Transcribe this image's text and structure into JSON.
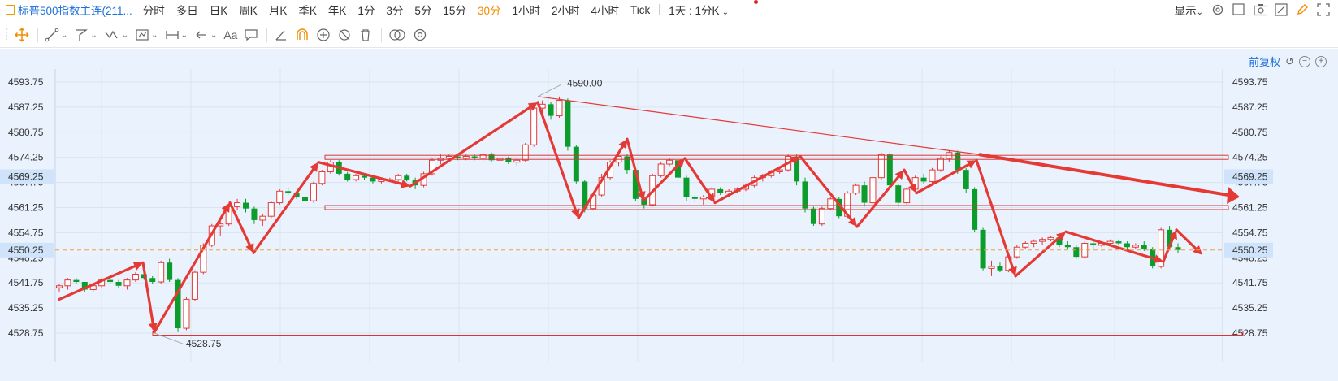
{
  "toolbar": {
    "title": "标普500指数主连(211...",
    "periods": [
      "分时",
      "多日",
      "日K",
      "周K",
      "月K",
      "季K",
      "年K",
      "1分",
      "3分",
      "5分",
      "15分",
      "30分",
      "1小时",
      "2小时",
      "4小时",
      "Tick"
    ],
    "active_period": "30分",
    "range_selector": "1天 : 1分K",
    "display_label": "显示"
  },
  "toolbar2": {
    "text_tool": "Aa"
  },
  "adjust": {
    "label": "前复权"
  },
  "price_axis": {
    "ticks": [
      "4593.75",
      "4587.25",
      "4580.75",
      "4574.25",
      "4567.75",
      "4561.25",
      "4554.75",
      "4548.25",
      "4541.75",
      "4535.25",
      "4528.75"
    ],
    "current_label": "4569.25",
    "last_label": "4550.25"
  },
  "annotations": {
    "high": "4590.00",
    "low": "4528.75"
  },
  "colors": {
    "up": "#e03a3a",
    "down": "#0b9c2c",
    "last_price": "#f0a040",
    "arrow": "#e53935"
  },
  "chart_data": {
    "type": "candlestick",
    "y_range": [
      4524,
      4600
    ],
    "candles": [
      [
        4540.5,
        4541.5,
        4539.5,
        4541
      ],
      [
        4541,
        4543,
        4540,
        4542.5
      ],
      [
        4542.5,
        4543,
        4541.5,
        4542
      ],
      [
        4542,
        4542,
        4539.5,
        4540
      ],
      [
        4540,
        4541.5,
        4539.5,
        4541
      ],
      [
        4541,
        4543,
        4540.5,
        4542.5
      ],
      [
        4542.5,
        4543,
        4541.5,
        4542
      ],
      [
        4542,
        4542.5,
        4540.5,
        4541
      ],
      [
        4541,
        4543,
        4540,
        4542.5
      ],
      [
        4542.5,
        4544.5,
        4542,
        4544
      ],
      [
        4544,
        4544.5,
        4542.5,
        4543
      ],
      [
        4543,
        4543.5,
        4541.5,
        4542
      ],
      [
        4542,
        4547.5,
        4541.5,
        4547
      ],
      [
        4547,
        4548,
        4542,
        4542.5
      ],
      [
        4542.5,
        4543,
        4529,
        4530
      ],
      [
        4530,
        4538,
        4529.5,
        4537.5
      ],
      [
        4537.5,
        4545,
        4537,
        4544.5
      ],
      [
        4544.5,
        4552,
        4544,
        4551.5
      ],
      [
        4551.5,
        4557,
        4551,
        4556.5
      ],
      [
        4556.5,
        4558,
        4554,
        4557
      ],
      [
        4557,
        4562,
        4556.5,
        4561.5
      ],
      [
        4561.5,
        4563.5,
        4560.5,
        4562.5
      ],
      [
        4562.5,
        4563.5,
        4560,
        4561
      ],
      [
        4561,
        4561.5,
        4557,
        4558
      ],
      [
        4558,
        4559.5,
        4556.5,
        4559
      ],
      [
        4559,
        4563,
        4558.5,
        4562.5
      ],
      [
        4562.5,
        4566,
        4562,
        4565.5
      ],
      [
        4565.5,
        4566.5,
        4564.5,
        4565
      ],
      [
        4565,
        4565.5,
        4563.5,
        4564
      ],
      [
        4564,
        4565,
        4562.5,
        4563
      ],
      [
        4563,
        4568,
        4562.5,
        4567.5
      ],
      [
        4567.5,
        4571,
        4567,
        4570.5
      ],
      [
        4570.5,
        4573.5,
        4570,
        4573
      ],
      [
        4573,
        4573.5,
        4569.5,
        4570
      ],
      [
        4570,
        4570.5,
        4568,
        4568.5
      ],
      [
        4568.5,
        4570,
        4568,
        4569.5
      ],
      [
        4569.5,
        4570,
        4568.5,
        4569
      ],
      [
        4569,
        4569.5,
        4567.5,
        4568
      ],
      [
        4568,
        4569,
        4567.5,
        4568.5
      ],
      [
        4568.5,
        4569,
        4568,
        4568.5
      ],
      [
        4568.5,
        4570,
        4568,
        4569.5
      ],
      [
        4569.5,
        4570,
        4568,
        4568.5
      ],
      [
        4568.5,
        4569,
        4566,
        4567
      ],
      [
        4567,
        4570.5,
        4566.5,
        4570
      ],
      [
        4570,
        4574,
        4569.5,
        4573.5
      ],
      [
        4573.5,
        4575,
        4572.5,
        4574
      ],
      [
        4574,
        4575,
        4573,
        4574.5
      ],
      [
        4574.5,
        4575,
        4573.5,
        4574
      ],
      [
        4574,
        4575,
        4573.5,
        4574.5
      ],
      [
        4574.5,
        4575,
        4573.5,
        4574
      ],
      [
        4574,
        4575.5,
        4573,
        4575
      ],
      [
        4575,
        4575.5,
        4573,
        4573.5
      ],
      [
        4573.5,
        4574.5,
        4573,
        4574
      ],
      [
        4574,
        4574.5,
        4572.5,
        4573
      ],
      [
        4573,
        4574,
        4572,
        4573.5
      ],
      [
        4573.5,
        4578,
        4573,
        4577.5
      ],
      [
        4577.5,
        4587.5,
        4577,
        4587
      ],
      [
        4587,
        4589,
        4584,
        4588
      ],
      [
        4588,
        4588.5,
        4584,
        4585
      ],
      [
        4585,
        4590,
        4584.5,
        4589
      ],
      [
        4589,
        4589.5,
        4576,
        4577
      ],
      [
        4577,
        4577.5,
        4567.5,
        4568
      ],
      [
        4568,
        4568.5,
        4560,
        4561
      ],
      [
        4561,
        4565,
        4560.5,
        4564.5
      ],
      [
        4564.5,
        4570,
        4564,
        4569
      ],
      [
        4569,
        4573.5,
        4568.5,
        4573
      ],
      [
        4573,
        4575,
        4572,
        4574.5
      ],
      [
        4574.5,
        4575,
        4570,
        4571
      ],
      [
        4571,
        4571.5,
        4563,
        4563.5
      ],
      [
        4563.5,
        4564,
        4561,
        4562
      ],
      [
        4562,
        4570,
        4561.5,
        4569.5
      ],
      [
        4569.5,
        4573,
        4569,
        4572.5
      ],
      [
        4572.5,
        4574,
        4572,
        4573.5
      ],
      [
        4573.5,
        4574,
        4568,
        4569
      ],
      [
        4569,
        4569.5,
        4563,
        4564
      ],
      [
        4564,
        4564.5,
        4562.5,
        4563.5
      ],
      [
        4563.5,
        4564.5,
        4562,
        4564
      ],
      [
        4564,
        4566.5,
        4563.5,
        4566
      ],
      [
        4566,
        4566.5,
        4564.5,
        4565
      ],
      [
        4565,
        4566,
        4564,
        4565.5
      ],
      [
        4565.5,
        4566.5,
        4565,
        4566
      ],
      [
        4566,
        4567.5,
        4565.5,
        4567
      ],
      [
        4567,
        4569.5,
        4566.5,
        4569
      ],
      [
        4569,
        4570,
        4568,
        4569.5
      ],
      [
        4569.5,
        4571,
        4569,
        4570.5
      ],
      [
        4570.5,
        4571.5,
        4570,
        4571
      ],
      [
        4571,
        4575,
        4570.5,
        4574.5
      ],
      [
        4574.5,
        4575,
        4567,
        4568
      ],
      [
        4568,
        4569,
        4560,
        4561
      ],
      [
        4561,
        4561.5,
        4556.5,
        4557
      ],
      [
        4557,
        4561.5,
        4556.5,
        4561
      ],
      [
        4561,
        4564,
        4560.5,
        4563.5
      ],
      [
        4563.5,
        4564,
        4558.5,
        4559
      ],
      [
        4559,
        4565.5,
        4558.5,
        4565
      ],
      [
        4565,
        4567.5,
        4564.5,
        4567
      ],
      [
        4567,
        4568,
        4561.5,
        4562.5
      ],
      [
        4562.5,
        4569.5,
        4562,
        4569
      ],
      [
        4569,
        4575.5,
        4568.5,
        4575
      ],
      [
        4575,
        4575.5,
        4566,
        4567
      ],
      [
        4567,
        4567.5,
        4561.5,
        4562.5
      ],
      [
        4562.5,
        4566.5,
        4562,
        4566
      ],
      [
        4566,
        4569.5,
        4565.5,
        4569
      ],
      [
        4569,
        4570,
        4567.5,
        4568
      ],
      [
        4568,
        4571.5,
        4567.5,
        4571
      ],
      [
        4571,
        4574.5,
        4570.5,
        4574
      ],
      [
        4574,
        4576,
        4573,
        4575.5
      ],
      [
        4575.5,
        4576,
        4570,
        4571
      ],
      [
        4571,
        4571.5,
        4565,
        4566
      ],
      [
        4566,
        4566.5,
        4555,
        4555.5
      ],
      [
        4555.5,
        4556,
        4545,
        4545.5
      ],
      [
        4545.5,
        4547.5,
        4543.5,
        4546
      ],
      [
        4546,
        4547,
        4544.5,
        4545
      ],
      [
        4545,
        4549,
        4544.5,
        4548.5
      ],
      [
        4548.5,
        4551.5,
        4548,
        4551
      ],
      [
        4551,
        4552.5,
        4550.5,
        4552
      ],
      [
        4552,
        4553,
        4551,
        4552.5
      ],
      [
        4552.5,
        4553.5,
        4551.5,
        4553
      ],
      [
        4553,
        4554,
        4552.5,
        4553.5
      ],
      [
        4553.5,
        4554,
        4551,
        4551.5
      ],
      [
        4551.5,
        4552.5,
        4550.5,
        4551
      ],
      [
        4551,
        4551.5,
        4548,
        4548.5
      ],
      [
        4548.5,
        4552.5,
        4548,
        4552
      ],
      [
        4552,
        4553,
        4550.5,
        4551.5
      ],
      [
        4551.5,
        4552.5,
        4551,
        4552
      ],
      [
        4552,
        4553,
        4551.5,
        4552.5
      ],
      [
        4552.5,
        4553,
        4551.5,
        4552
      ],
      [
        4552,
        4552.5,
        4550.5,
        4551
      ],
      [
        4551,
        4552,
        4550.5,
        4551.5
      ],
      [
        4551.5,
        4552.5,
        4550,
        4550.5
      ],
      [
        4550.5,
        4551,
        4545.5,
        4546
      ],
      [
        4546,
        4556,
        4545.5,
        4555.5
      ],
      [
        4555.5,
        4556.5,
        4550.5,
        4551
      ],
      [
        4551,
        4552,
        4549.5,
        4550.25
      ]
    ]
  }
}
